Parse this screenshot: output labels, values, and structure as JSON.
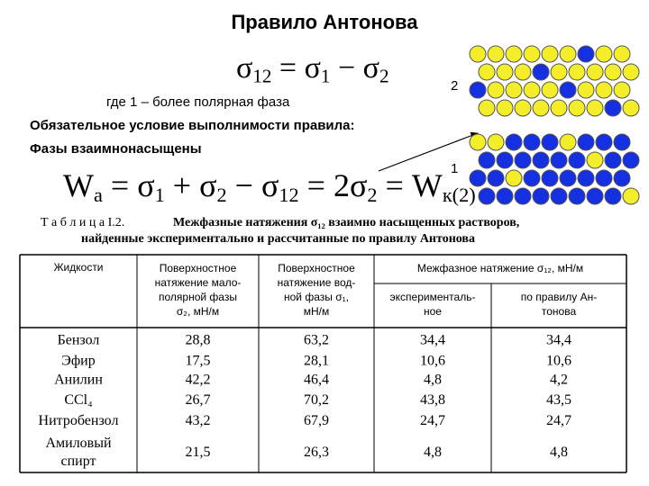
{
  "title": "Правило Антонова",
  "formula_1": {
    "tokens": [
      {
        "base": "σ",
        "sub": "12"
      },
      {
        "base": " = σ",
        "sub": "1"
      },
      {
        "base": " − σ",
        "sub": "2"
      }
    ]
  },
  "note": "где 1 – более полярная фаза",
  "condition": "Обязательное условие выполнимости правила:",
  "phases": "Фазы взаимнонасыщены",
  "formula_2": {
    "tokens": [
      {
        "base": "W",
        "sub": "a"
      },
      {
        "base": " = σ",
        "sub": "1"
      },
      {
        "base": " + σ",
        "sub": "2"
      },
      {
        "base": " − σ",
        "sub": "12"
      },
      {
        "base": " = 2σ",
        "sub": "2"
      },
      {
        "base": " = W",
        "sub": "к(2)"
      }
    ]
  },
  "diagram": {
    "label_top": "2",
    "label_bottom": "1"
  },
  "caption": {
    "prefix": "Т а б л и ц а  I.2.",
    "lines": [
      "Межфазные натяжения σ₁₂ взаимно насыщенных растворов,",
      "найденные экспериментально и рассчитанные по правилу Антонова"
    ]
  },
  "table": {
    "columns": [
      {
        "lines": [
          "Жидкости"
        ]
      },
      {
        "lines": [
          "Поверхностное",
          "натяжение мало-",
          "полярной фазы",
          "σ₂, мН/м"
        ]
      },
      {
        "lines": [
          "Поверхностное",
          "натяжение вод-",
          "ной фазы σ₁,",
          "мН/м"
        ]
      },
      {
        "lines": [
          "Межфазное натяжение σ₁₂, мН/м"
        ]
      }
    ],
    "subcolumns": [
      {
        "lines": [
          "эксперименталь-",
          "ное"
        ]
      },
      {
        "lines": [
          "по правилу Ан-",
          "тонова"
        ]
      }
    ],
    "rows": [
      {
        "name": [
          "Бензол"
        ],
        "values": [
          "28,8",
          "63,2",
          "34,4",
          "34,4"
        ]
      },
      {
        "name": [
          "Эфир"
        ],
        "values": [
          "17,5",
          "28,1",
          "10,6",
          "10,6"
        ]
      },
      {
        "name": [
          "Анилин"
        ],
        "values": [
          "42,2",
          "46,4",
          "4,8",
          "4,2"
        ]
      },
      {
        "name": [
          "CCl₄"
        ],
        "values": [
          "26,7",
          "70,2",
          "43,8",
          "43,5"
        ]
      },
      {
        "name": [
          "Нитробензол"
        ],
        "values": [
          "43,2",
          "67,9",
          "24,7",
          "24,7"
        ]
      },
      {
        "name": [
          "Амиловый",
          "спирт"
        ],
        "values": [
          "21,5",
          "26,3",
          "4,8",
          "4,8"
        ]
      }
    ]
  }
}
